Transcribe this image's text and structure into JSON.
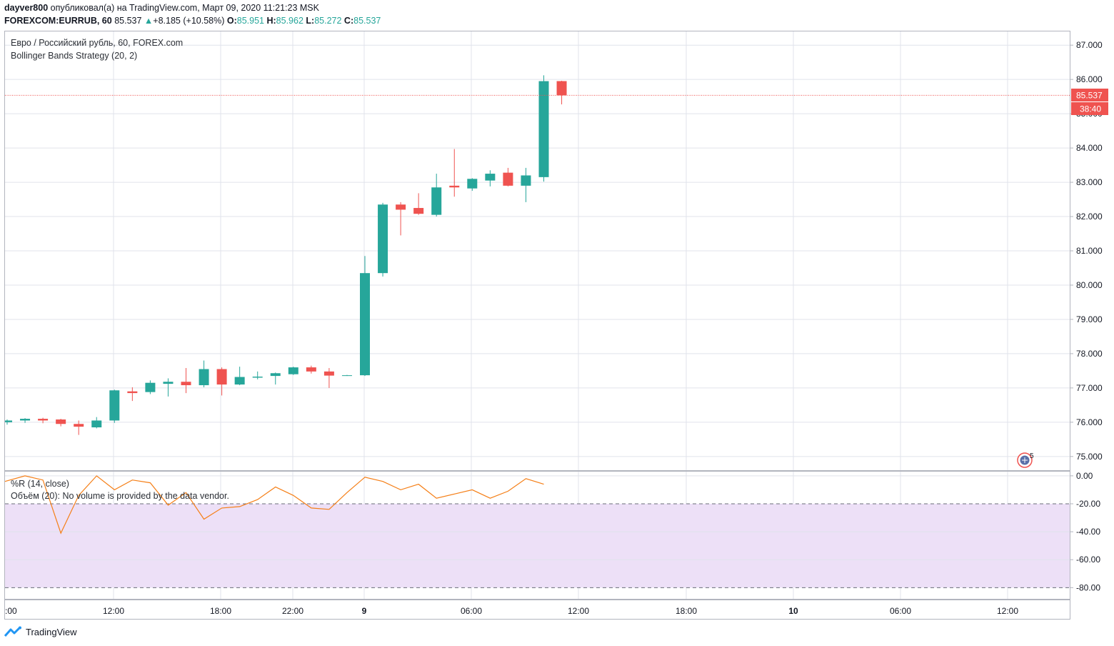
{
  "header": {
    "author": "dayver800",
    "published_text": "опубликовал(а) на TradingView.com, Март 09, 2020 11:21:23 MSK",
    "symbol": "FOREXCOM:EURRUB, 60",
    "last": "85.537",
    "change_arrow": "▲",
    "change": "+8.185 (+10.58%)",
    "o_label": "O:",
    "o": "85.951",
    "h_label": "H:",
    "h": "85.962",
    "l_label": "L:",
    "l": "85.272",
    "c_label": "C:",
    "c": "85.537"
  },
  "legend": {
    "series_title": "Евро / Российский рубль, 60, FOREX.com",
    "strategy": "Bollinger Bands Strategy (20, 2)",
    "wr_title": "%R (14, close)",
    "volume_note": "Объём (20): No volume is provided by the data vendor."
  },
  "price_badge": "85.537",
  "timer_badge": "38:40",
  "flag_count": "5",
  "footer": {
    "brand": "TradingView"
  },
  "colors": {
    "up": "#26a69a",
    "down": "#ef5350",
    "wr_line": "#f57f17",
    "wr_band": "#ede0f7",
    "grid": "#e0e3eb",
    "price_line": "#ef5350"
  },
  "chart_data": [
    {
      "type": "candlestick",
      "title": "Евро / Российский рубль, 60, FOREX.com",
      "x_tick_labels": [
        ":00",
        "12:00",
        "18:00",
        "22:00",
        "9",
        "06:00",
        "12:00",
        "18:00",
        "10",
        "06:00",
        "12:00"
      ],
      "y_tick_labels": [
        "75.000",
        "76.000",
        "77.000",
        "78.000",
        "79.000",
        "80.000",
        "81.000",
        "82.000",
        "83.000",
        "84.000",
        "85.000",
        "86.000",
        "87.000"
      ],
      "ylim": [
        74.6,
        87.4
      ],
      "last_price": 85.537,
      "candles": [
        {
          "o": 76.0,
          "h": 76.08,
          "l": 75.93,
          "c": 76.05
        },
        {
          "o": 76.05,
          "h": 76.12,
          "l": 75.98,
          "c": 76.1
        },
        {
          "o": 76.1,
          "h": 76.13,
          "l": 75.97,
          "c": 76.05
        },
        {
          "o": 76.08,
          "h": 76.1,
          "l": 75.88,
          "c": 75.95
        },
        {
          "o": 75.95,
          "h": 76.05,
          "l": 75.63,
          "c": 75.87
        },
        {
          "o": 75.85,
          "h": 76.15,
          "l": 75.82,
          "c": 76.05
        },
        {
          "o": 76.05,
          "h": 76.95,
          "l": 75.98,
          "c": 76.93
        },
        {
          "o": 76.9,
          "h": 77.02,
          "l": 76.62,
          "c": 76.85
        },
        {
          "o": 76.88,
          "h": 77.22,
          "l": 76.82,
          "c": 77.15
        },
        {
          "o": 77.12,
          "h": 77.28,
          "l": 76.75,
          "c": 77.18
        },
        {
          "o": 77.18,
          "h": 77.58,
          "l": 76.85,
          "c": 77.08
        },
        {
          "o": 77.08,
          "h": 77.8,
          "l": 77.02,
          "c": 77.55
        },
        {
          "o": 77.55,
          "h": 77.6,
          "l": 76.78,
          "c": 77.1
        },
        {
          "o": 77.1,
          "h": 77.62,
          "l": 77.08,
          "c": 77.32
        },
        {
          "o": 77.3,
          "h": 77.48,
          "l": 77.25,
          "c": 77.33
        },
        {
          "o": 77.35,
          "h": 77.45,
          "l": 77.1,
          "c": 77.43
        },
        {
          "o": 77.4,
          "h": 77.62,
          "l": 77.38,
          "c": 77.6
        },
        {
          "o": 77.6,
          "h": 77.65,
          "l": 77.42,
          "c": 77.48
        },
        {
          "o": 77.48,
          "h": 77.58,
          "l": 77.0,
          "c": 77.36
        },
        {
          "o": 77.36,
          "h": 77.38,
          "l": 77.35,
          "c": 77.37
        },
        {
          "o": 77.37,
          "h": 80.85,
          "l": 77.35,
          "c": 80.35
        },
        {
          "o": 80.35,
          "h": 82.4,
          "l": 80.25,
          "c": 82.35
        },
        {
          "o": 82.35,
          "h": 82.42,
          "l": 81.45,
          "c": 82.2
        },
        {
          "o": 82.25,
          "h": 82.68,
          "l": 82.05,
          "c": 82.08
        },
        {
          "o": 82.05,
          "h": 83.25,
          "l": 82.0,
          "c": 82.85
        },
        {
          "o": 82.9,
          "h": 83.97,
          "l": 82.58,
          "c": 82.85
        },
        {
          "o": 82.82,
          "h": 83.12,
          "l": 82.75,
          "c": 83.1
        },
        {
          "o": 83.05,
          "h": 83.35,
          "l": 82.88,
          "c": 83.25
        },
        {
          "o": 83.28,
          "h": 83.42,
          "l": 82.88,
          "c": 82.9
        },
        {
          "o": 82.9,
          "h": 83.42,
          "l": 82.42,
          "c": 83.2
        },
        {
          "o": 83.15,
          "h": 86.12,
          "l": 83.02,
          "c": 85.95
        },
        {
          "o": 85.951,
          "h": 85.962,
          "l": 85.272,
          "c": 85.537
        }
      ]
    },
    {
      "type": "line",
      "title": "%R (14, close)",
      "y_tick_labels": [
        "0.00",
        "-20.00",
        "-40.00",
        "-60.00",
        "-80.00"
      ],
      "ylim": [
        -88,
        3
      ],
      "band": [
        -80,
        -20
      ],
      "values": [
        -4,
        0,
        -3,
        -41,
        -14,
        0,
        -10,
        -3,
        -5,
        -21,
        -12,
        -31,
        -23,
        -22,
        -17,
        -8,
        -14,
        -23,
        -24,
        -12,
        -1,
        -4,
        -10,
        -6,
        -16,
        -13,
        -10,
        -16,
        -11,
        -2,
        -6
      ]
    }
  ]
}
